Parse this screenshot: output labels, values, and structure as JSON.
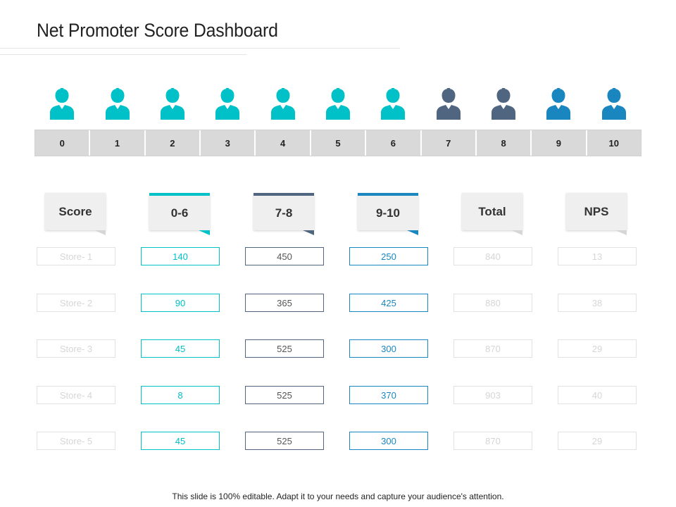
{
  "title": "Net Promoter Score Dashboard",
  "colors": {
    "detractor": "#00c0c8",
    "passive": "#4f6580",
    "promoter": "#1a86bf"
  },
  "icons": "person-icon",
  "scale": [
    "0",
    "1",
    "2",
    "3",
    "4",
    "5",
    "6",
    "7",
    "8",
    "9",
    "10"
  ],
  "scale_groups": [
    "detractor",
    "detractor",
    "detractor",
    "detractor",
    "detractor",
    "detractor",
    "detractor",
    "passive",
    "passive",
    "promoter",
    "promoter"
  ],
  "headers": [
    "Score",
    "0-6",
    "7-8",
    "9-10",
    "Total",
    "NPS"
  ],
  "rows": [
    {
      "store": "Store- 1",
      "d": "140",
      "p": "450",
      "pr": "250",
      "total": "840",
      "nps": "13"
    },
    {
      "store": "Store- 2",
      "d": "90",
      "p": "365",
      "pr": "425",
      "total": "880",
      "nps": "38"
    },
    {
      "store": "Store- 3",
      "d": "45",
      "p": "525",
      "pr": "300",
      "total": "870",
      "nps": "29"
    },
    {
      "store": "Store- 4",
      "d": "8",
      "p": "525",
      "pr": "370",
      "total": "903",
      "nps": "40"
    },
    {
      "store": "Store- 5",
      "d": "45",
      "p": "525",
      "pr": "300",
      "total": "870",
      "nps": "29"
    }
  ],
  "footer": "This slide is 100% editable. Adapt it to your needs and capture your audience's attention."
}
